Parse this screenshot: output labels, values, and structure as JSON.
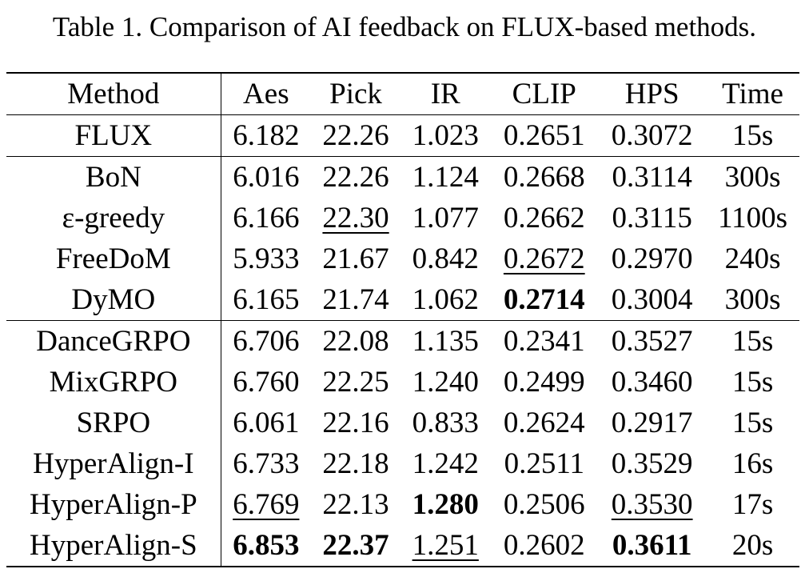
{
  "caption": "Table 1. Comparison of AI feedback on FLUX-based methods.",
  "table": {
    "header": [
      "Method",
      "Aes",
      "Pick",
      "IR",
      "CLIP",
      "HPS",
      "Time"
    ],
    "rows": [
      [
        "FLUX",
        "6.182",
        "22.26",
        "1.023",
        "0.2651",
        "0.3072",
        "15s"
      ],
      [
        "BoN",
        "6.016",
        "22.26",
        "1.124",
        "0.2668",
        "0.3114",
        "300s"
      ],
      [
        "ε-greedy",
        "6.166",
        "22.30",
        "1.077",
        "0.2662",
        "0.3115",
        "1100s"
      ],
      [
        "FreeDoM",
        "5.933",
        "21.67",
        "0.842",
        "0.2672",
        "0.2970",
        "240s"
      ],
      [
        "DyMO",
        "6.165",
        "21.74",
        "1.062",
        "0.2714",
        "0.3004",
        "300s"
      ],
      [
        "DanceGRPO",
        "6.706",
        "22.08",
        "1.135",
        "0.2341",
        "0.3527",
        "15s"
      ],
      [
        "MixGRPO",
        "6.760",
        "22.25",
        "1.240",
        "0.2499",
        "0.3460",
        "15s"
      ],
      [
        "SRPO",
        "6.061",
        "22.16",
        "0.833",
        "0.2624",
        "0.2917",
        "15s"
      ],
      [
        "HyperAlign-I",
        "6.733",
        "22.18",
        "1.242",
        "0.2511",
        "0.3529",
        "16s"
      ],
      [
        "HyperAlign-P",
        "6.769",
        "22.13",
        "1.280",
        "0.2506",
        "0.3530",
        "17s"
      ],
      [
        "HyperAlign-S",
        "6.853",
        "22.37",
        "1.251",
        "0.2602",
        "0.3611",
        "20s"
      ]
    ]
  }
}
